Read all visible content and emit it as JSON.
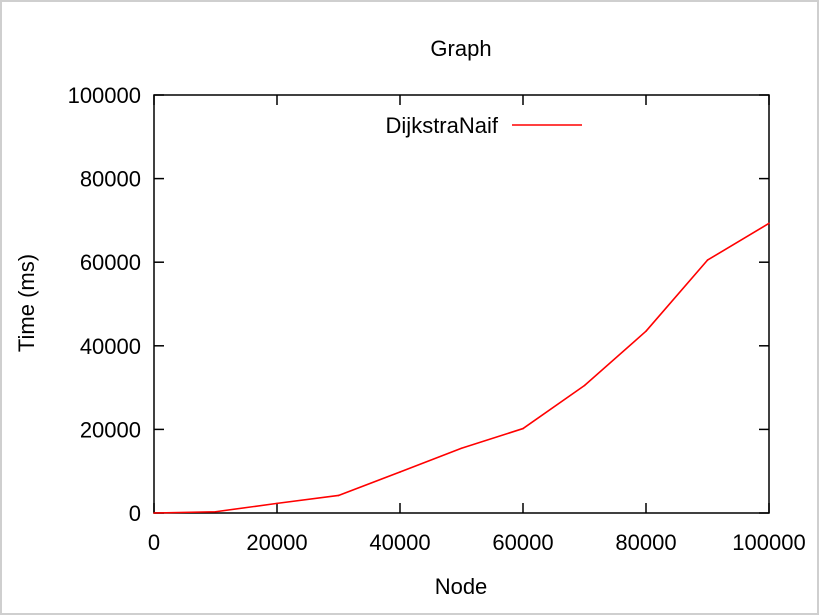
{
  "chart_data": {
    "type": "line",
    "title": "Graph",
    "xlabel": "Node",
    "ylabel": "Time (ms)",
    "xlim": [
      0,
      100000
    ],
    "ylim": [
      0,
      100000
    ],
    "xticks": [
      0,
      20000,
      40000,
      60000,
      80000,
      100000
    ],
    "yticks": [
      0,
      20000,
      40000,
      60000,
      80000,
      100000
    ],
    "xtick_labels": [
      "0",
      "20000",
      "40000",
      "60000",
      "80000",
      "100000"
    ],
    "ytick_labels": [
      "0",
      "20000",
      "40000",
      "60000",
      "80000",
      "100000"
    ],
    "grid": false,
    "legend_position": "top-center",
    "series": [
      {
        "name": "DijkstraNaif",
        "color": "#ff0000",
        "x": [
          0,
          10000,
          20000,
          30000,
          40000,
          50000,
          60000,
          70000,
          80000,
          90000,
          100000
        ],
        "y": [
          0,
          300,
          2300,
          4200,
          9800,
          15500,
          20200,
          30500,
          43500,
          60500,
          69300
        ]
      }
    ]
  }
}
